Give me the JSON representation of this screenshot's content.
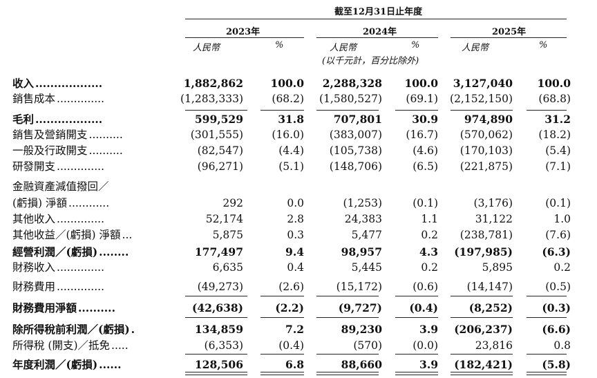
{
  "header": {
    "title": "截至12月31日止年度",
    "years": [
      "2023年",
      "2024年",
      "2025年"
    ],
    "currency": "人民幣",
    "pct": "%",
    "note": "(以千元計，百分比除外)"
  },
  "rows": [
    {
      "label": "收入",
      "dots": "..................",
      "bold": true,
      "values": [
        "1,882,862",
        "100.0",
        "2,288,328",
        "100.0",
        "3,127,040",
        "100.0"
      ]
    },
    {
      "label": "銷售成本",
      "dots": "..............",
      "bold": false,
      "values": [
        "(1,283,333)",
        "(68.2)",
        "(1,580,527)",
        "(69.1)",
        "(2,152,150)",
        "(68.8)"
      ]
    },
    {
      "label": "毛利",
      "dots": "..................",
      "bold": true,
      "values": [
        "599,529",
        "31.8",
        "707,801",
        "30.9",
        "974,890",
        "31.2"
      ]
    },
    {
      "label": "銷售及營銷開支",
      "dots": "..........",
      "bold": false,
      "values": [
        "(301,555)",
        "(16.0)",
        "(383,007)",
        "(16.7)",
        "(570,062)",
        "(18.2)"
      ]
    },
    {
      "label": "一般及行政開支",
      "dots": "..........",
      "bold": false,
      "values": [
        "(82,547)",
        "(4.4)",
        "(105,738)",
        "(4.6)",
        "(170,103)",
        "(5.4)"
      ]
    },
    {
      "label": "研發開支",
      "dots": "..............",
      "bold": false,
      "values": [
        "(96,271)",
        "(5.1)",
        "(148,706)",
        "(6.5)",
        "(221,875)",
        "(7.1)"
      ]
    },
    {
      "label": "金融資產減值撥回／",
      "dots": "",
      "bold": false,
      "values": [
        "",
        "",
        "",
        "",
        "",
        ""
      ]
    },
    {
      "label": "  (虧損) 淨額",
      "dots": "............",
      "bold": false,
      "values": [
        "292",
        "0.0",
        "(1,253)",
        "(0.1)",
        "(3,176)",
        "(0.1)"
      ]
    },
    {
      "label": "其他收入",
      "dots": "..............",
      "bold": false,
      "values": [
        "52,174",
        "2.8",
        "24,383",
        "1.1",
        "31,122",
        "1.0"
      ]
    },
    {
      "label": "其他收益／(虧損) 淨額",
      "dots": "...",
      "bold": false,
      "values": [
        "5,875",
        "0.3",
        "5,477",
        "0.2",
        "(238,781)",
        "(7.6)"
      ]
    },
    {
      "label": "經營利潤／(虧損)",
      "dots": "........",
      "bold": true,
      "values": [
        "177,497",
        "9.4",
        "98,957",
        "4.3",
        "(197,985)",
        "(6.3)"
      ]
    },
    {
      "label": "財務收入",
      "dots": "..............",
      "bold": false,
      "values": [
        "6,635",
        "0.4",
        "5,445",
        "0.2",
        "5,895",
        "0.2"
      ]
    },
    {
      "label": "財務費用",
      "dots": "..............",
      "bold": false,
      "values": [
        "(49,273)",
        "(2.6)",
        "(15,172)",
        "(0.6)",
        "(14,147)",
        "(0.5)"
      ]
    },
    {
      "label": "財務費用淨額",
      "dots": "..........",
      "bold": true,
      "values": [
        "(42,638)",
        "(2.2)",
        "(9,727)",
        "(0.4)",
        "(8,252)",
        "(0.3)"
      ]
    },
    {
      "label": "除所得稅前利潤／(虧損)",
      "dots": ".",
      "bold": true,
      "values": [
        "134,859",
        "7.2",
        "89,230",
        "3.9",
        "(206,237)",
        "(6.6)"
      ]
    },
    {
      "label": "所得稅 (開支)／抵免",
      "dots": ".....",
      "bold": false,
      "values": [
        "(6,353)",
        "(0.4)",
        "(570)",
        "(0.0)",
        "23,816",
        "0.8"
      ]
    },
    {
      "label": "年度利潤／(虧損)",
      "dots": "......",
      "bold": true,
      "values": [
        "128,506",
        "6.8",
        "88,660",
        "3.9",
        "(182,421)",
        "(5.8)"
      ]
    }
  ]
}
